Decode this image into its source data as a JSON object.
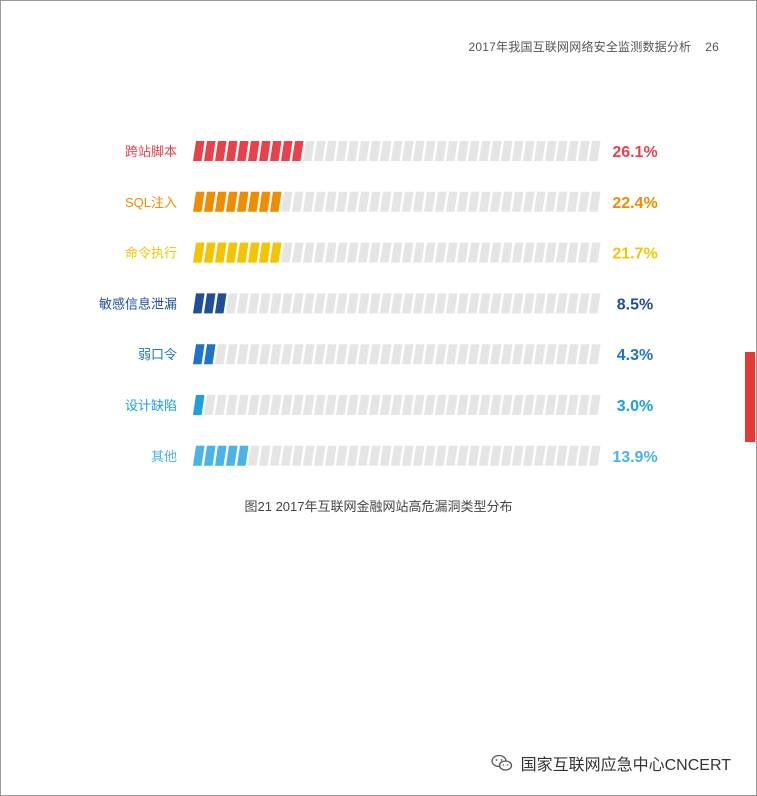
{
  "header": {
    "title": "2017年我国互联网网络安全监测数据分析",
    "page": "26"
  },
  "chart_data": {
    "type": "bar",
    "title": "图21 2017年互联网金融网站高危漏洞类型分布",
    "categories": [
      "跨站脚本",
      "SQL注入",
      "命令执行",
      "敏感信息泄漏",
      "弱口令",
      "设计缺陷",
      "其他"
    ],
    "values": [
      26.1,
      22.4,
      21.7,
      8.5,
      4.3,
      3.0,
      13.9
    ],
    "value_labels": [
      "26.1%",
      "22.4%",
      "21.7%",
      "8.5%",
      "4.3%",
      "3.0%",
      "13.9%"
    ],
    "colors": [
      "#e8414c",
      "#f08c00",
      "#f5c400",
      "#1f4e9a",
      "#1f74c8",
      "#1aa1de",
      "#4ab3e8"
    ],
    "xlim": [
      0,
      100
    ],
    "grid": false
  },
  "watermark": {
    "text": "国家互联网应急中心CNCERT",
    "icon": "wechat-icon"
  }
}
